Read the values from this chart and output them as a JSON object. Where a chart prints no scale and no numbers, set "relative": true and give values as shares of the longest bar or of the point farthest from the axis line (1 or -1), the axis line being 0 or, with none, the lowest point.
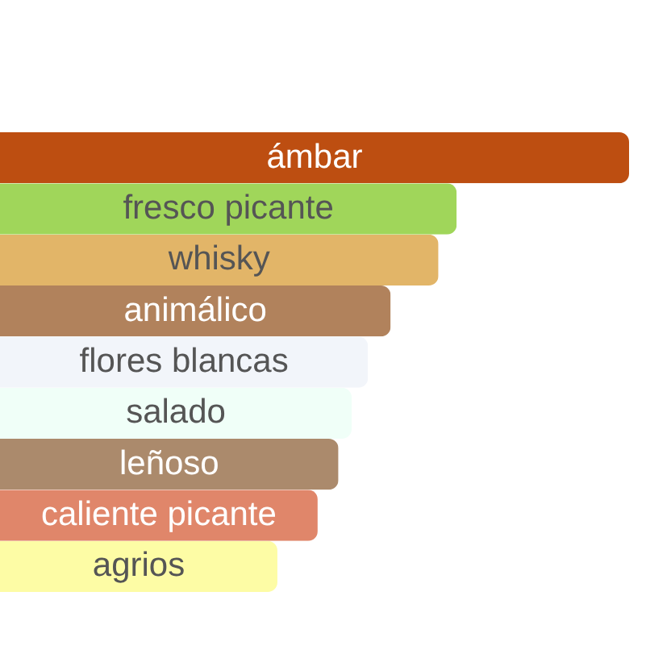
{
  "chart_data": {
    "type": "bar",
    "orientation": "horizontal",
    "relative": true,
    "categories": [
      "ámbar",
      "fresco picante",
      "whisky",
      "animálico",
      "flores blancas",
      "salado",
      "leñoso",
      "caliente picante",
      "agrios"
    ],
    "values": [
      1,
      0.726,
      0.697,
      0.621,
      0.585,
      0.559,
      0.538,
      0.505,
      0.441
    ],
    "colors": [
      "#bd4e11",
      "#a0d65a",
      "#e2b568",
      "#b1825c",
      "#f2f5fa",
      "#f0fff8",
      "#ab8a6c",
      "#e0866a",
      "#fdfca5"
    ]
  }
}
